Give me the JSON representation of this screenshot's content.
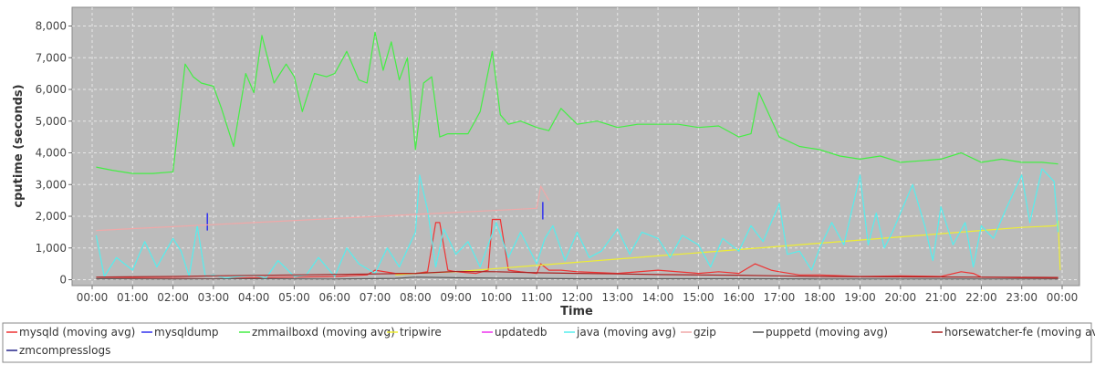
{
  "chart_data": {
    "type": "line",
    "title": "",
    "xlabel": "Time",
    "ylabel": "cputime (seconds)",
    "xlim": [
      0,
      24
    ],
    "ylim": [
      0,
      8500
    ],
    "grid": true,
    "legend_position": "bottom",
    "x_ticks": [
      "00:00",
      "01:00",
      "02:00",
      "03:00",
      "04:00",
      "05:00",
      "06:00",
      "07:00",
      "08:00",
      "09:00",
      "10:00",
      "11:00",
      "12:00",
      "13:00",
      "14:00",
      "15:00",
      "16:00",
      "17:00",
      "18:00",
      "19:00",
      "20:00",
      "21:00",
      "22:00",
      "23:00",
      "00:00"
    ],
    "y_ticks": [
      {
        "value": 0,
        "label": "0"
      },
      {
        "value": 1000,
        "label": "1,000"
      },
      {
        "value": 2000,
        "label": "2,000"
      },
      {
        "value": 3000,
        "label": "3,000"
      },
      {
        "value": 4000,
        "label": "4,000"
      },
      {
        "value": 5000,
        "label": "5,000"
      },
      {
        "value": 6000,
        "label": "6,000"
      },
      {
        "value": 7000,
        "label": "7,000"
      },
      {
        "value": 8000,
        "label": "8,000"
      }
    ],
    "series": [
      {
        "name": "mysqld (moving avg)",
        "color": "#ee3333",
        "x": [
          0.1,
          1,
          2,
          3,
          4,
          5,
          6,
          6.8,
          7,
          7.5,
          8,
          8.3,
          8.5,
          8.6,
          8.8,
          9,
          9.5,
          9.8,
          9.9,
          10.1,
          10.3,
          10.6,
          11,
          11.1,
          11.3,
          11.6,
          12,
          13,
          14,
          15,
          15.5,
          16,
          16.4,
          16.8,
          17,
          17.5,
          18,
          19,
          20,
          21,
          21.5,
          21.8,
          22,
          23,
          23.9
        ],
        "y": [
          30,
          50,
          40,
          30,
          60,
          80,
          100,
          150,
          300,
          200,
          200,
          250,
          1800,
          1800,
          300,
          250,
          200,
          300,
          1900,
          1900,
          300,
          250,
          200,
          500,
          300,
          300,
          250,
          200,
          300,
          200,
          250,
          200,
          500,
          300,
          250,
          150,
          150,
          100,
          120,
          100,
          250,
          200,
          80,
          60,
          50
        ]
      },
      {
        "name": "mysqldump",
        "color": "#3333ee",
        "x": [
          2.85,
          2.85,
          11.15,
          11.15
        ],
        "y": [
          1550,
          2100,
          1900,
          2450
        ]
      },
      {
        "name": "zmmailboxd (moving avg)",
        "color": "#44ee44",
        "x": [
          0.1,
          0.5,
          1,
          1.5,
          2,
          2.3,
          2.5,
          2.7,
          3,
          3.2,
          3.5,
          3.8,
          4,
          4.2,
          4.5,
          4.8,
          5,
          5.2,
          5.5,
          5.8,
          6,
          6.3,
          6.6,
          6.8,
          7,
          7.2,
          7.4,
          7.6,
          7.8,
          8,
          8.2,
          8.4,
          8.6,
          8.8,
          9,
          9.3,
          9.6,
          9.9,
          10.1,
          10.3,
          10.6,
          11,
          11.3,
          11.6,
          12,
          12.5,
          13,
          13.5,
          14,
          14.5,
          15,
          15.5,
          16,
          16.3,
          16.5,
          17,
          17.5,
          18,
          18.5,
          19,
          19.5,
          20,
          20.5,
          21,
          21.5,
          22,
          22.5,
          23,
          23.5,
          23.9
        ],
        "y": [
          3550,
          3450,
          3350,
          3350,
          3400,
          6800,
          6400,
          6200,
          6100,
          5400,
          4200,
          6500,
          5900,
          7700,
          6200,
          6800,
          6400,
          5300,
          6500,
          6400,
          6500,
          7200,
          6300,
          6200,
          7800,
          6600,
          7500,
          6300,
          7000,
          4100,
          6200,
          6400,
          4500,
          4600,
          4600,
          4600,
          5300,
          7200,
          5200,
          4900,
          5000,
          4800,
          4700,
          5400,
          4900,
          5000,
          4800,
          4900,
          4900,
          4900,
          4800,
          4850,
          4500,
          4600,
          5900,
          4500,
          4200,
          4100,
          3900,
          3800,
          3900,
          3700,
          3750,
          3800,
          4000,
          3700,
          3800,
          3700,
          3700,
          3650
        ]
      },
      {
        "name": "tripwire",
        "color": "#eeee33",
        "x": [
          7.5,
          8,
          9,
          10,
          11,
          12,
          13,
          14,
          15,
          16,
          17,
          18,
          19,
          20,
          21,
          22,
          23,
          23.85,
          23.9,
          23.95
        ],
        "y": [
          150,
          200,
          250,
          350,
          450,
          550,
          650,
          750,
          850,
          950,
          1050,
          1150,
          1250,
          1350,
          1450,
          1550,
          1650,
          1700,
          1850,
          300
        ],
        "size_label": ""
      },
      {
        "name": "updatedb",
        "color": "#ee33ee",
        "x": [],
        "y": []
      },
      {
        "name": "java (moving avg)",
        "color": "#55eeee",
        "x": [
          0.1,
          0.3,
          0.6,
          1,
          1.3,
          1.6,
          2,
          2.2,
          2.4,
          2.6,
          2.8,
          3,
          3.3,
          3.6,
          4,
          4.3,
          4.6,
          5,
          5.3,
          5.6,
          6,
          6.3,
          6.6,
          7,
          7.3,
          7.6,
          8,
          8.1,
          8.3,
          8.5,
          8.7,
          9,
          9.3,
          9.6,
          10,
          10.3,
          10.6,
          11,
          11.2,
          11.4,
          11.7,
          12,
          12.3,
          12.6,
          13,
          13.3,
          13.6,
          14,
          14.3,
          14.6,
          15,
          15.3,
          15.6,
          16,
          16.3,
          16.6,
          17,
          17.2,
          17.5,
          17.8,
          18,
          18.3,
          18.6,
          19,
          19.2,
          19.4,
          19.6,
          19.8,
          20,
          20.3,
          20.6,
          20.8,
          21,
          21.3,
          21.6,
          21.8,
          22,
          22.3,
          22.6,
          23,
          23.2,
          23.5,
          23.8,
          23.9
        ],
        "y": [
          1400,
          100,
          700,
          300,
          1200,
          400,
          1300,
          900,
          100,
          1700,
          100,
          150,
          50,
          100,
          150,
          50,
          600,
          100,
          150,
          700,
          100,
          1000,
          500,
          200,
          1000,
          400,
          1500,
          3300,
          2200,
          400,
          1600,
          800,
          1200,
          400,
          1800,
          700,
          1500,
          500,
          1300,
          1700,
          600,
          1500,
          700,
          900,
          1600,
          800,
          1500,
          1300,
          700,
          1400,
          1100,
          400,
          1300,
          900,
          1700,
          1200,
          2400,
          800,
          900,
          300,
          1000,
          1800,
          1100,
          3300,
          1100,
          2100,
          1000,
          1500,
          2100,
          3000,
          1700,
          600,
          2300,
          1100,
          1800,
          400,
          1700,
          1300,
          2200,
          3300,
          1800,
          3500,
          3100,
          1500
        ]
      },
      {
        "name": "gzip",
        "color": "#f0a8a8",
        "x": [
          0.1,
          11.0,
          11.1,
          11.3
        ],
        "y": [
          1550,
          2250,
          2950,
          2500
        ]
      },
      {
        "name": "puppetd (moving avg)",
        "color": "#555555",
        "x": [
          0.1,
          2,
          4,
          6,
          7.5,
          8,
          9,
          10,
          11,
          12,
          14,
          16,
          18,
          20,
          22,
          23.9
        ],
        "y": [
          30,
          20,
          30,
          20,
          40,
          80,
          60,
          50,
          40,
          30,
          30,
          30,
          20,
          20,
          20,
          20
        ]
      },
      {
        "name": "horsewatcher-fe (moving avg)",
        "color": "#aa2222",
        "x": [
          0.1,
          2,
          3,
          5,
          7,
          8,
          9,
          10,
          11,
          12,
          13,
          14,
          15,
          16,
          17,
          18,
          20,
          22,
          23.9
        ],
        "y": [
          80,
          100,
          120,
          150,
          180,
          200,
          260,
          250,
          220,
          200,
          180,
          160,
          150,
          140,
          120,
          100,
          90,
          80,
          70
        ]
      },
      {
        "name": "zmcompresslogs",
        "color": "#222288",
        "x": [],
        "y": []
      }
    ]
  }
}
